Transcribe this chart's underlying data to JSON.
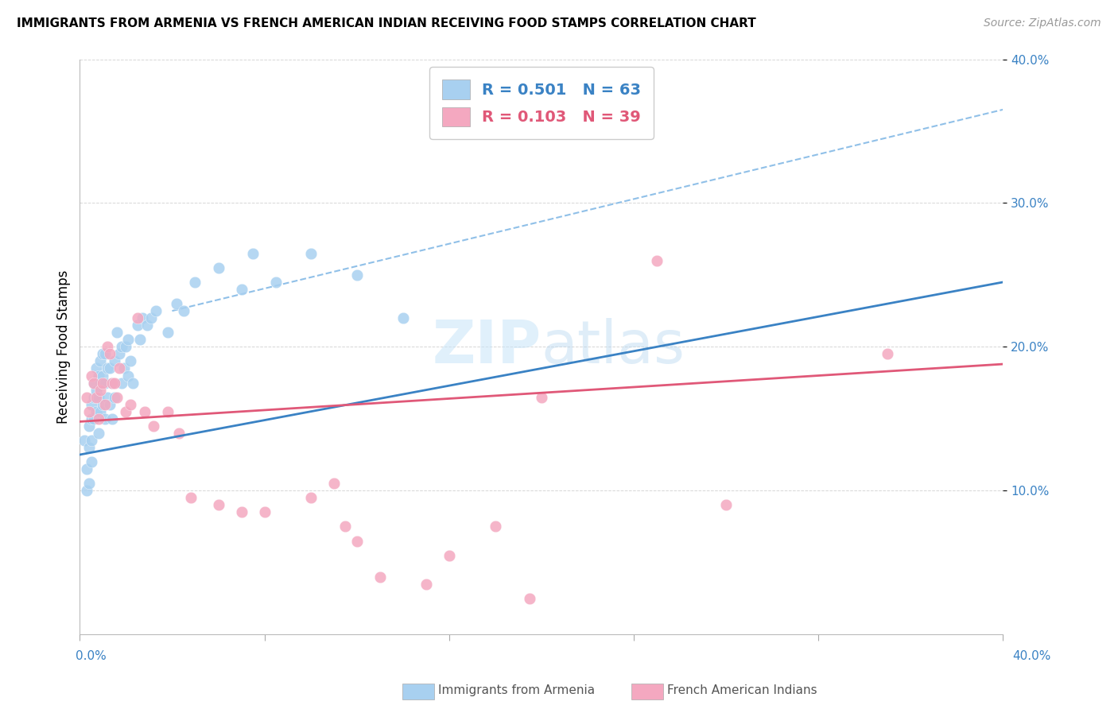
{
  "title": "IMMIGRANTS FROM ARMENIA VS FRENCH AMERICAN INDIAN RECEIVING FOOD STAMPS CORRELATION CHART",
  "source": "Source: ZipAtlas.com",
  "ylabel": "Receiving Food Stamps",
  "legend_label_blue": "Immigrants from Armenia",
  "legend_label_pink": "French American Indians",
  "R_blue": 0.501,
  "N_blue": 63,
  "R_pink": 0.103,
  "N_pink": 39,
  "color_blue": "#A8D0F0",
  "color_pink": "#F4A8C0",
  "color_blue_line": "#3A82C4",
  "color_pink_line": "#E05878",
  "color_blue_text": "#3A82C4",
  "color_pink_text": "#E05878",
  "watermark_color": "#C8E4F8",
  "xlim": [
    0.0,
    0.4
  ],
  "ylim": [
    0.0,
    0.4
  ],
  "blue_scatter_x": [
    0.002,
    0.003,
    0.003,
    0.004,
    0.004,
    0.004,
    0.005,
    0.005,
    0.005,
    0.005,
    0.006,
    0.006,
    0.006,
    0.007,
    0.007,
    0.007,
    0.008,
    0.008,
    0.008,
    0.009,
    0.009,
    0.009,
    0.01,
    0.01,
    0.01,
    0.011,
    0.011,
    0.011,
    0.012,
    0.012,
    0.013,
    0.013,
    0.014,
    0.014,
    0.015,
    0.015,
    0.016,
    0.017,
    0.018,
    0.018,
    0.019,
    0.02,
    0.021,
    0.021,
    0.022,
    0.023,
    0.025,
    0.026,
    0.027,
    0.029,
    0.031,
    0.033,
    0.038,
    0.042,
    0.045,
    0.05,
    0.06,
    0.07,
    0.075,
    0.085,
    0.1,
    0.12,
    0.14
  ],
  "blue_scatter_y": [
    0.135,
    0.115,
    0.1,
    0.145,
    0.13,
    0.105,
    0.16,
    0.15,
    0.135,
    0.12,
    0.175,
    0.165,
    0.15,
    0.185,
    0.17,
    0.155,
    0.18,
    0.165,
    0.14,
    0.19,
    0.175,
    0.155,
    0.195,
    0.18,
    0.16,
    0.195,
    0.175,
    0.15,
    0.185,
    0.165,
    0.185,
    0.16,
    0.175,
    0.15,
    0.19,
    0.165,
    0.21,
    0.195,
    0.2,
    0.175,
    0.185,
    0.2,
    0.205,
    0.18,
    0.19,
    0.175,
    0.215,
    0.205,
    0.22,
    0.215,
    0.22,
    0.225,
    0.21,
    0.23,
    0.225,
    0.245,
    0.255,
    0.24,
    0.265,
    0.245,
    0.265,
    0.25,
    0.22
  ],
  "pink_scatter_x": [
    0.003,
    0.004,
    0.005,
    0.006,
    0.007,
    0.008,
    0.009,
    0.01,
    0.011,
    0.012,
    0.013,
    0.014,
    0.015,
    0.016,
    0.017,
    0.02,
    0.022,
    0.025,
    0.028,
    0.032,
    0.038,
    0.043,
    0.048,
    0.06,
    0.07,
    0.08,
    0.1,
    0.11,
    0.115,
    0.12,
    0.13,
    0.15,
    0.16,
    0.18,
    0.195,
    0.2,
    0.25,
    0.28,
    0.35
  ],
  "pink_scatter_y": [
    0.165,
    0.155,
    0.18,
    0.175,
    0.165,
    0.15,
    0.17,
    0.175,
    0.16,
    0.2,
    0.195,
    0.175,
    0.175,
    0.165,
    0.185,
    0.155,
    0.16,
    0.22,
    0.155,
    0.145,
    0.155,
    0.14,
    0.095,
    0.09,
    0.085,
    0.085,
    0.095,
    0.105,
    0.075,
    0.065,
    0.04,
    0.035,
    0.055,
    0.075,
    0.025,
    0.165,
    0.26,
    0.09,
    0.195
  ],
  "blue_line_x": [
    0.0,
    0.4
  ],
  "blue_line_y": [
    0.125,
    0.245
  ],
  "pink_line_x": [
    0.0,
    0.4
  ],
  "pink_line_y": [
    0.148,
    0.188
  ],
  "dashed_line_x": [
    0.04,
    0.4
  ],
  "dashed_line_y": [
    0.225,
    0.365
  ]
}
